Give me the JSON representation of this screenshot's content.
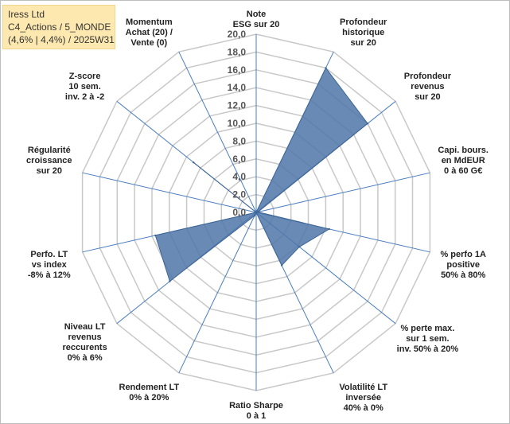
{
  "info": {
    "line1": "Iress Ltd",
    "line2": "C4_Actions / 5_MONDE",
    "line3": "(4,6% | 4,4%) / 2025W31"
  },
  "chart_data": {
    "type": "radar",
    "rmin": 0,
    "rmax": 20,
    "ticks": [
      "0,0",
      "2,0",
      "4,0",
      "6,0",
      "8,0",
      "10,0",
      "12,0",
      "14,0",
      "16,0",
      "18,0",
      "20,0"
    ],
    "axes": [
      {
        "label": [
          "Note",
          "ESG sur 20"
        ],
        "value": 0
      },
      {
        "label": [
          "Profondeur",
          "historique",
          "sur 20"
        ],
        "value": 18
      },
      {
        "label": [
          "Profondeur",
          "revenus",
          "sur 20"
        ],
        "value": 16
      },
      {
        "label": [
          "Capi. bours.",
          "en MdEUR",
          "0 à 60 G€"
        ],
        "value": 0.2
      },
      {
        "label": [
          "% perfo 1A",
          "positive",
          "50% à 80%"
        ],
        "value": 8.4
      },
      {
        "label": [
          "% perte max.",
          "sur 1 sem.",
          "inv. 50% à 20%"
        ],
        "value": 6.2
      },
      {
        "label": [
          "Volatilité LT",
          "inversée",
          "40% à 0%"
        ],
        "value": 6.6
      },
      {
        "label": [
          "Ratio Sharpe",
          "0 à 1"
        ],
        "value": 0
      },
      {
        "label": [
          "Rendement LT",
          "0% à 20%"
        ],
        "value": 0.4
      },
      {
        "label": [
          "Niveau LT",
          "revenus",
          "reccurents",
          "0% à 6%"
        ],
        "value": 12.4
      },
      {
        "label": [
          "Perfo. LT",
          "vs index",
          "-8% à 12%"
        ],
        "value": 11.6
      },
      {
        "label": [
          "Régularité",
          "croissance",
          "sur 20"
        ],
        "value": 0
      },
      {
        "label": [
          "Z-score",
          "10 sem.",
          "inv. 2 à -2"
        ],
        "value": 9
      },
      {
        "label": [
          "Momentum",
          "Achat (20) /",
          "Vente (0)"
        ],
        "value": 0
      }
    ],
    "grid": true,
    "series": [
      {
        "values": [
          0,
          18,
          16,
          0.2,
          8.4,
          6.2,
          6.6,
          0,
          0.4,
          12.4,
          11.6,
          0,
          9,
          0
        ]
      }
    ],
    "colors": {
      "fill": "#4f76a8",
      "stroke": "#3d6596",
      "grid": "#c8c8c8",
      "axis": "#4a7dc0"
    }
  }
}
